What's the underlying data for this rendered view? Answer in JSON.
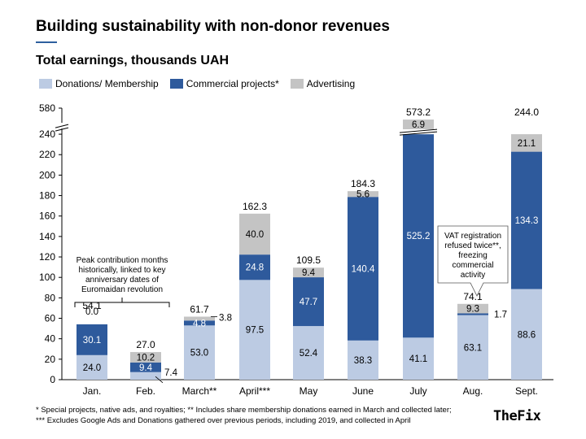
{
  "header": {
    "title": "Building sustainability with non-donor revenues",
    "subtitle": "Total earnings, thousands UAH"
  },
  "footnotes": {
    "line1": "* Special projects, native ads, and royalties; ** Includes share membership donations earned in March and collected later;",
    "line2": "*** Excludes Google Ads and Donations gathered over previous periods, including 2019, and collected in April"
  },
  "brand": {
    "text": "TheFix"
  },
  "colors": {
    "donations": "#bccbe3",
    "commercial": "#2e5a9c",
    "advertising": "#c4c4c4"
  },
  "chart_data": {
    "type": "bar",
    "stacked": true,
    "categories": [
      "Jan.",
      "Feb.",
      "March**",
      "April***",
      "May",
      "June",
      "July",
      "Aug.",
      "Sept."
    ],
    "series": [
      {
        "name": "Donations/ Membership",
        "key": "donations",
        "values": [
          24.0,
          7.4,
          53.0,
          97.5,
          52.4,
          38.3,
          41.1,
          63.1,
          88.6
        ]
      },
      {
        "name": "Commercial projects*",
        "key": "commercial",
        "values": [
          30.1,
          9.4,
          4.8,
          24.8,
          47.7,
          140.4,
          525.2,
          1.7,
          134.3
        ]
      },
      {
        "name": "Advertising",
        "key": "advertising",
        "values": [
          0.0,
          10.2,
          3.8,
          40.0,
          9.4,
          5.6,
          6.9,
          9.3,
          21.1
        ]
      }
    ],
    "totals": [
      54.1,
      27.0,
      61.7,
      162.3,
      109.5,
      184.3,
      573.2,
      74.1,
      244.0
    ],
    "ylim": [
      0,
      580
    ],
    "axis_break": [
      240,
      580
    ],
    "y_ticks": [
      "0",
      "20",
      "40",
      "60",
      "80",
      "100",
      "120",
      "140",
      "160",
      "180",
      "200",
      "220",
      "240",
      "580"
    ],
    "legend_position": "top-left",
    "annotations": {
      "peak": [
        "Peak contribution months",
        "historically, linked to key",
        "anniversary dates of",
        "Euromaidan revolution"
      ],
      "vat": [
        "VAT registration",
        "refused twice**,",
        "freezing",
        "commercial",
        "activity"
      ]
    }
  }
}
